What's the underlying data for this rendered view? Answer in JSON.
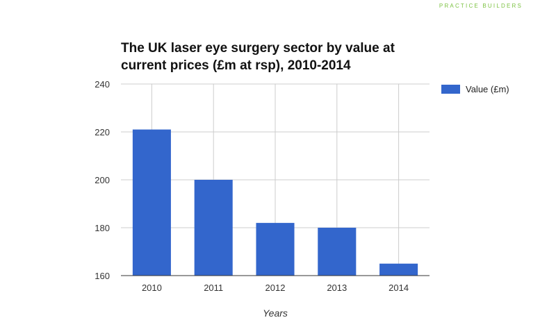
{
  "brand": {
    "text": "PRACTICE BUILDERS"
  },
  "chart_data": {
    "type": "bar",
    "title_lines": [
      "The UK laser eye surgery sector by value at",
      "current prices (£m at rsp), 2010-2014"
    ],
    "categories": [
      "2010",
      "2011",
      "2012",
      "2013",
      "2014"
    ],
    "series": [
      {
        "name": "Value (£m)",
        "values": [
          221,
          200,
          182,
          180,
          165
        ],
        "color": "#3366cc"
      }
    ],
    "xlabel": "Years",
    "ylabel": "",
    "ylim": [
      160,
      240
    ],
    "yticks": [
      160,
      180,
      200,
      220,
      240
    ],
    "grid": true,
    "legend_position": "right"
  }
}
